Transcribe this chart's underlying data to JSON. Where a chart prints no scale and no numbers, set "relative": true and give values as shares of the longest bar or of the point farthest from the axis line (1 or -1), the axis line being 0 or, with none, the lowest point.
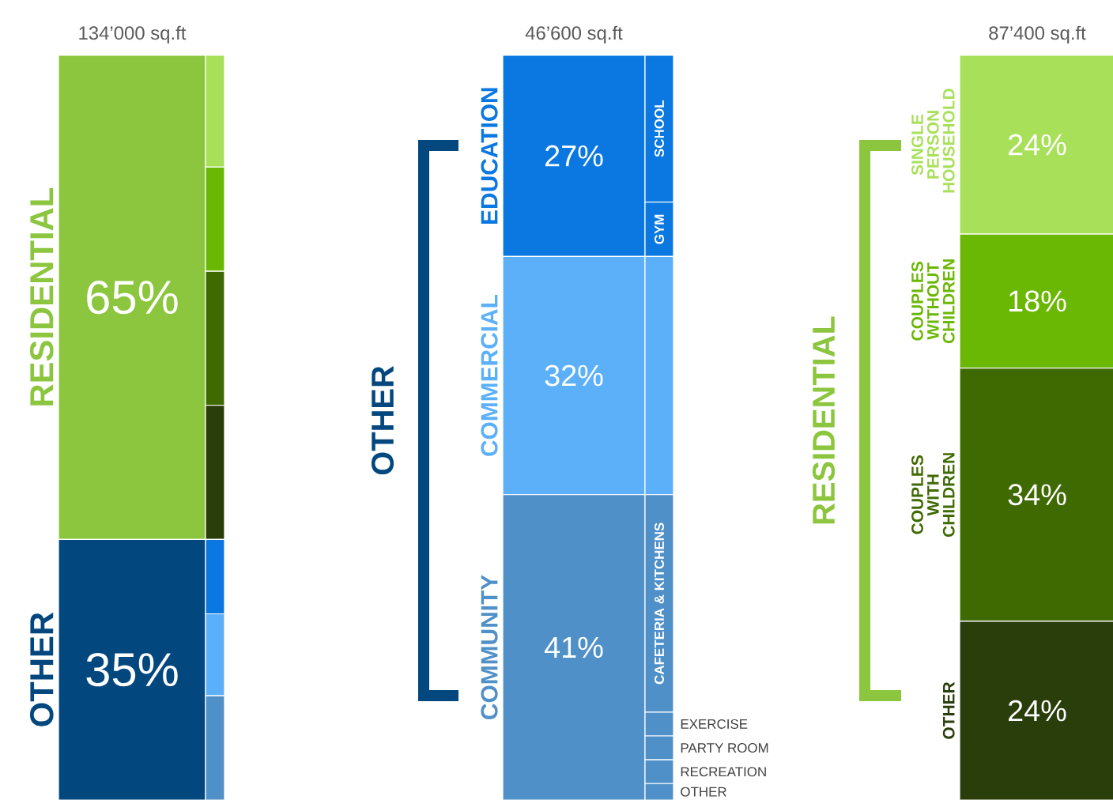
{
  "chart_data": [
    {
      "type": "bar",
      "stacked": true,
      "title": "134’000 sq.ft",
      "categories": [
        null
      ],
      "series": [
        {
          "name": "OTHER",
          "color": "#03477f",
          "values": [
            35
          ],
          "value_labels": [
            "35%"
          ]
        },
        {
          "name": "RESIDENTIAL",
          "color": "#8cc63f",
          "values": [
            65
          ],
          "value_labels": [
            "65%"
          ]
        }
      ]
    },
    {
      "type": "bar",
      "stacked": true,
      "relative": true,
      "categories": [
        null
      ],
      "series": [
        {
          "color": "#5090c8",
          "values": [
            0.14
          ]
        },
        {
          "color": "#5cb0fa",
          "values": [
            0.11
          ]
        },
        {
          "color": "#0a78e0",
          "values": [
            0.1
          ]
        },
        {
          "color": "#2a3e0c",
          "values": [
            0.18
          ]
        },
        {
          "color": "#3f6a02",
          "values": [
            0.18
          ]
        },
        {
          "color": "#6ab704",
          "values": [
            0.14
          ]
        },
        {
          "color": "#a8e05a",
          "values": [
            0.15
          ]
        }
      ]
    },
    {
      "type": "bar",
      "stacked": true,
      "title": "46’600 sq.ft",
      "categories": [
        null
      ],
      "annotations": [
        "OTHER"
      ],
      "series": [
        {
          "name": "COMMUNITY",
          "color": "#5090c8",
          "values": [
            41
          ],
          "value_labels": [
            "41%"
          ]
        },
        {
          "name": "COMMERCIAL",
          "color": "#5cb0fa",
          "values": [
            32
          ],
          "value_labels": [
            "32%"
          ]
        },
        {
          "name": "EDUCATION",
          "color": "#0a78e0",
          "values": [
            27
          ],
          "value_labels": [
            "27%"
          ]
        }
      ]
    },
    {
      "type": "bar",
      "stacked": true,
      "relative": true,
      "categories": [
        null
      ],
      "series": [
        {
          "name": "OTHER",
          "color": "#5090c8",
          "values": [
            0.022
          ]
        },
        {
          "name": "RECREATION",
          "color": "#5090c8",
          "values": [
            0.032
          ]
        },
        {
          "name": "PARTY ROOM",
          "color": "#5090c8",
          "values": [
            0.032
          ]
        },
        {
          "name": "EXERCISE",
          "color": "#5090c8",
          "values": [
            0.032
          ]
        },
        {
          "name": "CAFETERIA & KITCHENS",
          "color": "#5090c8",
          "values": [
            0.292
          ]
        },
        {
          "color": "#5cb0fa",
          "values": [
            0.32
          ]
        },
        {
          "name": "GYM",
          "color": "#0a78e0",
          "values": [
            0.073
          ]
        },
        {
          "name": "SCHOOL",
          "color": "#0a78e0",
          "values": [
            0.197
          ]
        }
      ]
    },
    {
      "type": "bar",
      "stacked": true,
      "title": "87’400 sq.ft",
      "categories": [
        null
      ],
      "annotations": [
        "RESIDENTIAL"
      ],
      "series": [
        {
          "name": "OTHER",
          "color": "#2a3e0c",
          "values": [
            24
          ],
          "value_labels": [
            "24%"
          ]
        },
        {
          "name": "COUPLES WITH CHILDREN",
          "color": "#3f6a02",
          "values": [
            34
          ],
          "value_labels": [
            "34%"
          ]
        },
        {
          "name": "COUPLES WITHOUT CHILDREN",
          "color": "#6ab704",
          "values": [
            18
          ],
          "value_labels": [
            "18%"
          ]
        },
        {
          "name": "SINGLE PERSON HOUSEHOLD",
          "color": "#a8e05a",
          "values": [
            24
          ],
          "value_labels": [
            "24%"
          ]
        }
      ]
    }
  ]
}
